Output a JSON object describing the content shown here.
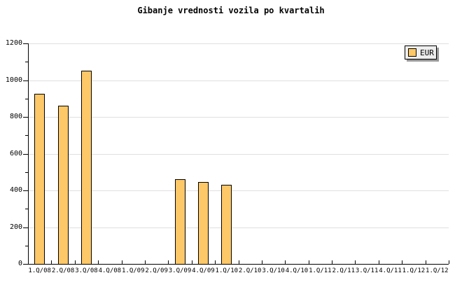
{
  "chart_data": {
    "type": "bar",
    "title": "Gibanje vrednosti vozila po kvartalih",
    "categories": [
      "1.Q/08",
      "2.Q/08",
      "3.Q/08",
      "4.Q/08",
      "1.Q/09",
      "2.Q/09",
      "3.Q/09",
      "4.Q/09",
      "1.Q/10",
      "2.Q/10",
      "3.Q/10",
      "4.Q/10",
      "1.Q/11",
      "2.Q/11",
      "3.Q/11",
      "4.Q/11",
      "1.Q/12",
      "1.Q/12"
    ],
    "series": [
      {
        "name": "EUR",
        "values": [
          925,
          860,
          1050,
          null,
          null,
          null,
          460,
          445,
          430,
          null,
          null,
          null,
          null,
          null,
          null,
          null,
          null,
          null
        ]
      }
    ],
    "xlabel": "",
    "ylabel": "",
    "ylim": [
      0,
      1200
    ],
    "y_major_step": 200,
    "y_minor_step": 100,
    "grid": "horizontal-major",
    "legend_position": "top-right",
    "colors": {
      "bar_fill": "#FDC868",
      "bar_border": "#000000",
      "grid_line": "#E0E0E0",
      "axis": "#000000",
      "legend_bg": "#EEEEEE",
      "legend_shadow": "#999999",
      "text": "#000000",
      "background": "#FFFFFF"
    }
  }
}
